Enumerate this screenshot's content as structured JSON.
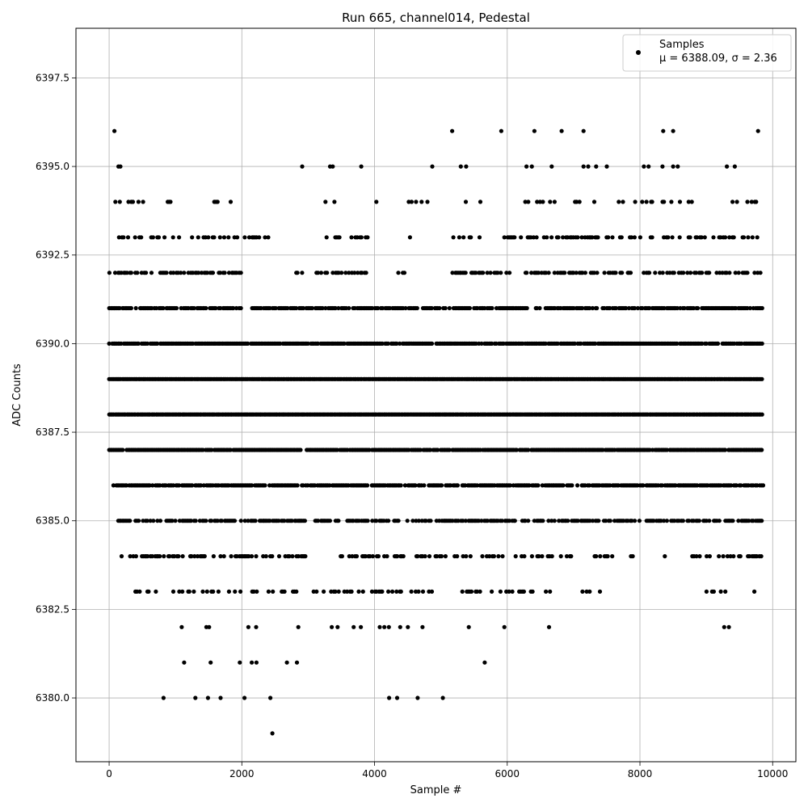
{
  "chart_data": {
    "type": "scatter",
    "title": "Run 665, channel014, Pedestal",
    "xlabel": "Sample #",
    "ylabel": "ADC Counts",
    "xlim": [
      -500,
      10350
    ],
    "ylim": [
      6378.2,
      6398.9
    ],
    "x_ticks": [
      0,
      2000,
      4000,
      6000,
      8000,
      10000
    ],
    "x_tick_labels": [
      "0",
      "2000",
      "4000",
      "6000",
      "8000",
      "10000"
    ],
    "y_ticks": [
      6380.0,
      6382.5,
      6385.0,
      6387.5,
      6390.0,
      6392.5,
      6395.0,
      6397.5
    ],
    "y_tick_labels": [
      "6380.0",
      "6382.5",
      "6385.0",
      "6387.5",
      "6390.0",
      "6392.5",
      "6395.0",
      "6397.5"
    ],
    "grid": true,
    "legend": {
      "position": "top-right",
      "entries": [
        "Samples",
        "μ = 6388.09, σ = 2.36"
      ]
    },
    "marker_color": "#000000",
    "series": [
      {
        "name": "Samples",
        "description": "ADC samples at integer levels; x ranges over the sample index",
        "points": [
          {
            "x": 80,
            "y": 6396
          },
          {
            "x": 5170,
            "y": 6396
          },
          {
            "x": 5910,
            "y": 6396
          },
          {
            "x": 6410,
            "y": 6396
          },
          {
            "x": 6820,
            "y": 6396
          },
          {
            "x": 7150,
            "y": 6396
          },
          {
            "x": 8350,
            "y": 6396
          },
          {
            "x": 8500,
            "y": 6396
          },
          {
            "x": 9780,
            "y": 6396
          },
          {
            "x": 140,
            "y": 6395
          },
          {
            "x": 170,
            "y": 6395
          },
          {
            "x": 2910,
            "y": 6395
          },
          {
            "x": 3330,
            "y": 6395
          },
          {
            "x": 3370,
            "y": 6395
          },
          {
            "x": 3800,
            "y": 6395
          },
          {
            "x": 4870,
            "y": 6395
          },
          {
            "x": 5300,
            "y": 6395
          },
          {
            "x": 5380,
            "y": 6395
          },
          {
            "x": 6290,
            "y": 6395
          },
          {
            "x": 6370,
            "y": 6395
          },
          {
            "x": 6670,
            "y": 6395
          },
          {
            "x": 7150,
            "y": 6395
          },
          {
            "x": 7220,
            "y": 6395
          },
          {
            "x": 7340,
            "y": 6395
          },
          {
            "x": 7500,
            "y": 6395
          },
          {
            "x": 8060,
            "y": 6395
          },
          {
            "x": 8130,
            "y": 6395
          },
          {
            "x": 8340,
            "y": 6395
          },
          {
            "x": 8500,
            "y": 6395
          },
          {
            "x": 8570,
            "y": 6395
          },
          {
            "x": 9310,
            "y": 6395
          },
          {
            "x": 9430,
            "y": 6395
          },
          {
            "x": 9340,
            "y": 6382
          },
          {
            "x": 9270,
            "y": 6382
          },
          {
            "x": 6630,
            "y": 6382
          },
          {
            "x": 820,
            "y": 6380
          },
          {
            "x": 1300,
            "y": 6380
          },
          {
            "x": 1490,
            "y": 6380
          },
          {
            "x": 1680,
            "y": 6380
          },
          {
            "x": 2040,
            "y": 6380
          },
          {
            "x": 2430,
            "y": 6380
          },
          {
            "x": 4220,
            "y": 6380
          },
          {
            "x": 4340,
            "y": 6380
          },
          {
            "x": 4650,
            "y": 6380
          },
          {
            "x": 5030,
            "y": 6380
          },
          {
            "x": 2460,
            "y": 6379
          },
          {
            "x": 1130,
            "y": 6381
          },
          {
            "x": 1530,
            "y": 6381
          },
          {
            "x": 1970,
            "y": 6381
          },
          {
            "x": 2150,
            "y": 6381
          },
          {
            "x": 2220,
            "y": 6381
          },
          {
            "x": 2680,
            "y": 6381
          },
          {
            "x": 2830,
            "y": 6381
          },
          {
            "x": 5660,
            "y": 6381
          }
        ],
        "dense_bands": [
          {
            "y": 6394,
            "x_range": [
              0,
              9780
            ],
            "density": 0.17
          },
          {
            "y": 6393,
            "x_range": [
              60,
              9830
            ],
            "density": 0.34
          },
          {
            "y": 6392,
            "x_range": [
              0,
              9830
            ],
            "density": 0.5
          },
          {
            "y": 6391,
            "x_range": [
              0,
              9850
            ],
            "density": 0.78
          },
          {
            "y": 6390,
            "x_range": [
              0,
              9850
            ],
            "density": 0.92
          },
          {
            "y": 6389,
            "x_range": [
              0,
              9850
            ],
            "density": 1.0
          },
          {
            "y": 6388,
            "x_range": [
              0,
              9850
            ],
            "density": 1.0
          },
          {
            "y": 6387,
            "x_range": [
              0,
              9850
            ],
            "density": 0.95
          },
          {
            "y": 6386,
            "x_range": [
              60,
              9850
            ],
            "density": 0.8
          },
          {
            "y": 6385,
            "x_range": [
              0,
              9850
            ],
            "density": 0.62
          },
          {
            "y": 6384,
            "x_range": [
              140,
              9820
            ],
            "density": 0.44
          },
          {
            "y": 6383,
            "x_range": [
              350,
              9830
            ],
            "density": 0.3
          },
          {
            "y": 6382,
            "x_range": [
              800,
              6110
            ],
            "density": 0.11
          }
        ],
        "gaps": {
          "6394": [
            [
              1000,
              1550
            ],
            [
              2000,
              3200
            ],
            [
              4100,
              4500
            ],
            [
              4800,
              5350
            ],
            [
              5650,
              6250
            ],
            [
              6800,
              6850
            ]
          ],
          "6393": [
            [
              2400,
              3200
            ],
            [
              3900,
              4500
            ],
            [
              4600,
              5150
            ],
            [
              5700,
              5850
            ]
          ],
          "6392": [
            [
              2000,
              2800
            ],
            [
              3900,
              4350
            ],
            [
              4450,
              5150
            ],
            [
              6100,
              6250
            ]
          ],
          "6391": [
            [
              2000,
              2150
            ]
          ],
          "6384": [
            [
              3000,
              3450
            ],
            [
              7000,
              7300
            ],
            [
              7600,
              7850
            ],
            [
              7900,
              8250
            ],
            [
              8400,
              8750
            ]
          ],
          "6383": [
            [
              4900,
              5150
            ],
            [
              6800,
              7050
            ],
            [
              7450,
              8950
            ],
            [
              9300,
              9600
            ]
          ],
          "6382": [
            [
              1700,
              1950
            ],
            [
              5100,
              5250
            ],
            [
              5450,
              5850
            ]
          ]
        }
      }
    ]
  }
}
